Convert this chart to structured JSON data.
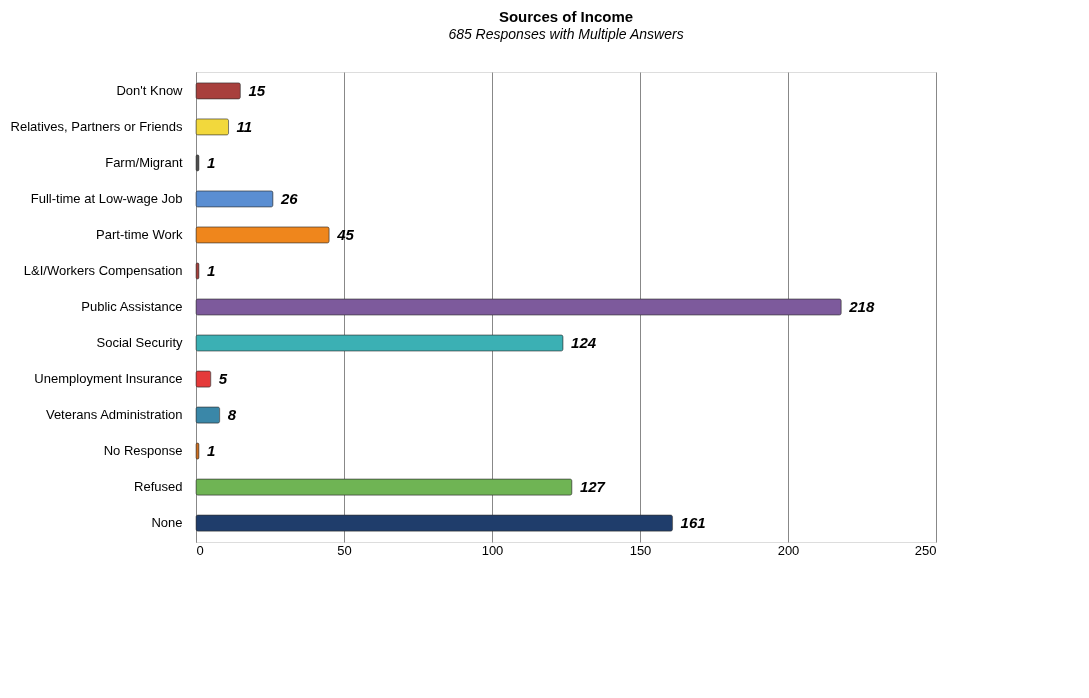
{
  "chart_data": {
    "type": "bar",
    "orientation": "horizontal",
    "title": "Sources of Income",
    "subtitle": "685 Responses with Multiple Answers",
    "categories": [
      "Don't Know",
      "Relatives, Partners or Friends",
      "Farm/Migrant",
      "Full-time at Low-wage Job",
      "Part-time Work",
      "L&I/Workers Compensation",
      "Public Assistance",
      "Social Security",
      "Unemployment Insurance",
      "Veterans Administration",
      "No Response",
      "Refused",
      "None"
    ],
    "values": [
      15,
      11,
      1,
      26,
      45,
      1,
      218,
      124,
      5,
      8,
      1,
      127,
      161
    ],
    "colors": [
      "#a8403d",
      "#f2d83c",
      "#505050",
      "#5a8ed2",
      "#ef861c",
      "#a8403d",
      "#7d5a9c",
      "#3bb0b4",
      "#e53a3a",
      "#3a87a8",
      "#d07020",
      "#6fb454",
      "#1f3d6b"
    ],
    "xlim": [
      0,
      250
    ],
    "xticks": [
      0,
      50,
      100,
      150,
      200,
      250
    ],
    "grid": "x",
    "data_labels": true
  }
}
